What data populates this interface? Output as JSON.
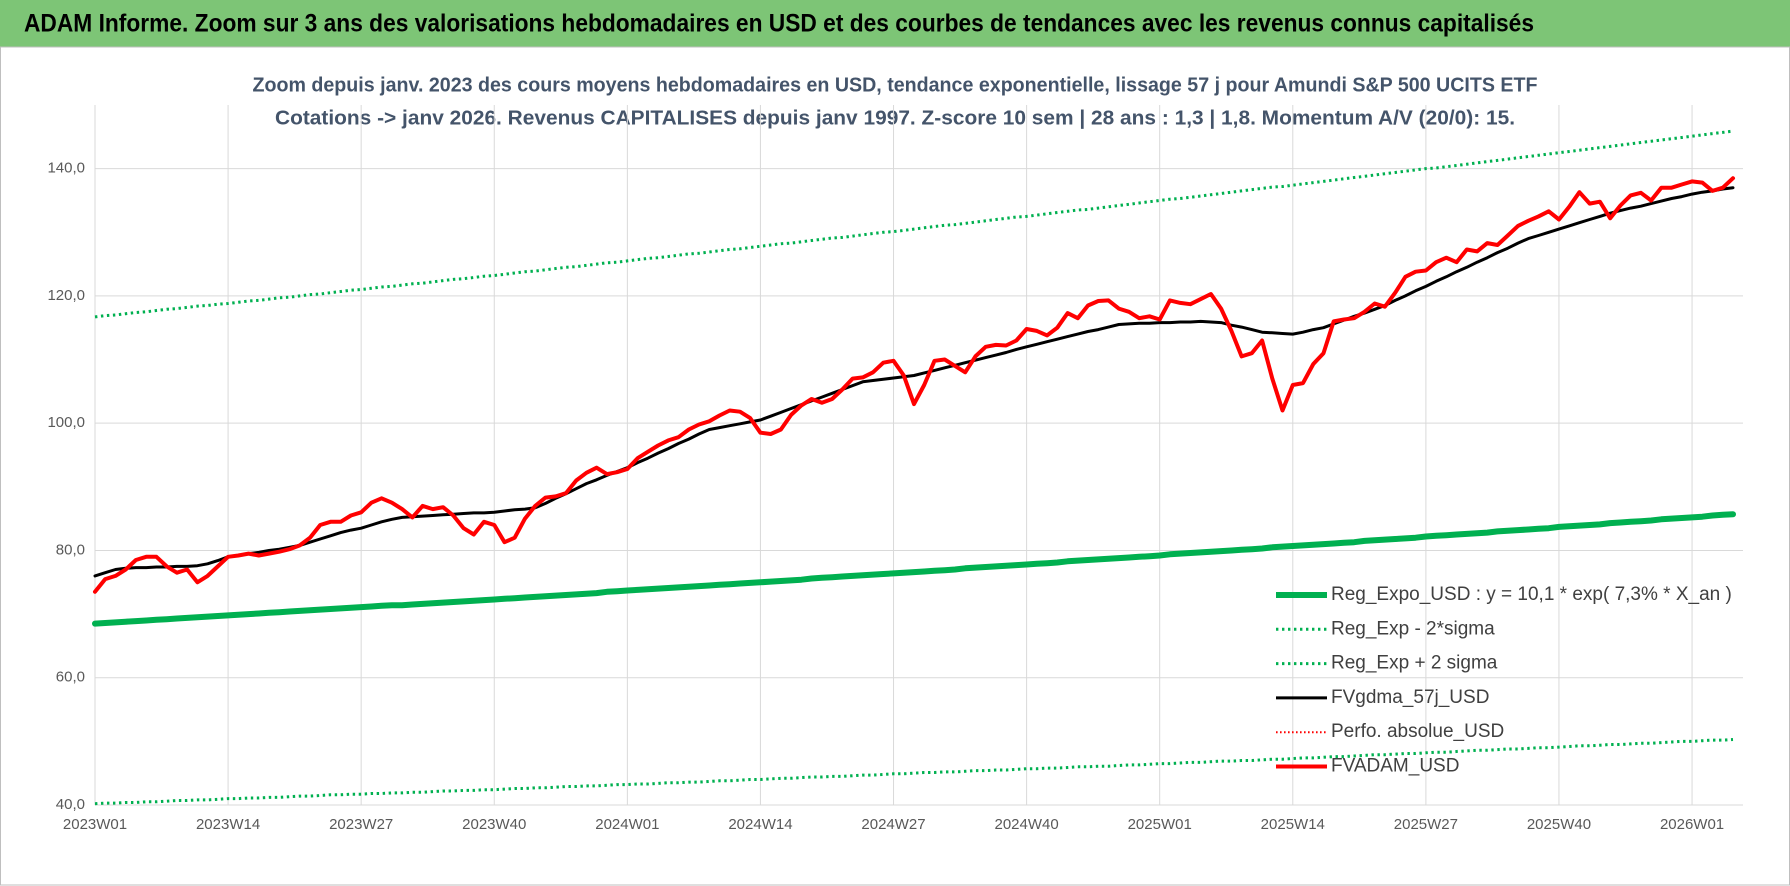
{
  "header": {
    "title": "ADAM Informe. Zoom sur 3 ans des valorisations hebdomadaires en USD et des courbes de tendances avec les revenus connus capitalisés"
  },
  "chart_data": {
    "type": "line",
    "title": "Zoom depuis janv. 2023 des cours moyens hebdomadaires en USD, tendance exponentielle, lissage 57 j pour Amundi S&P 500 UCITS ETF",
    "subtitle": "Cotations -> janv 2026. Revenus CAPITALISES depuis janv 1997. Z-score 10 sem | 28 ans : 1,3 | 1,8. Momentum A/V (20/0): 15.",
    "categories": [
      "2023W01",
      null,
      null,
      null,
      null,
      null,
      null,
      null,
      null,
      null,
      null,
      null,
      null,
      "2023W14",
      null,
      null,
      null,
      null,
      null,
      null,
      null,
      null,
      null,
      null,
      null,
      null,
      "2023W27",
      null,
      null,
      null,
      null,
      null,
      null,
      null,
      null,
      null,
      null,
      null,
      null,
      "2023W40",
      null,
      null,
      null,
      null,
      null,
      null,
      null,
      null,
      null,
      null,
      null,
      null,
      "2024W01",
      null,
      null,
      null,
      null,
      null,
      null,
      null,
      null,
      null,
      null,
      null,
      null,
      "2024W14",
      null,
      null,
      null,
      null,
      null,
      null,
      null,
      null,
      null,
      null,
      null,
      null,
      "2024W27",
      null,
      null,
      null,
      null,
      null,
      null,
      null,
      null,
      null,
      null,
      null,
      null,
      "2024W40",
      null,
      null,
      null,
      null,
      null,
      null,
      null,
      null,
      null,
      null,
      null,
      null,
      "2025W01",
      null,
      null,
      null,
      null,
      null,
      null,
      null,
      null,
      null,
      null,
      null,
      null,
      "2025W14",
      null,
      null,
      null,
      null,
      null,
      null,
      null,
      null,
      null,
      null,
      null,
      null,
      "2025W27",
      null,
      null,
      null,
      null,
      null,
      null,
      null,
      null,
      null,
      null,
      null,
      null,
      "2025W40",
      null,
      null,
      null,
      null,
      null,
      null,
      null,
      null,
      null,
      null,
      null,
      null,
      "2026W01",
      null,
      null,
      null,
      null
    ],
    "ylim": [
      40,
      150
    ],
    "yticks": [
      {
        "value": 40,
        "label": "40,0"
      },
      {
        "value": 60,
        "label": "60,0"
      },
      {
        "value": 80,
        "label": "80,0"
      },
      {
        "value": 100,
        "label": "100,0"
      },
      {
        "value": 120,
        "label": "120,0"
      },
      {
        "value": 140,
        "label": "140,0"
      }
    ],
    "grid": true,
    "legend": "bottom-right",
    "series": [
      {
        "name": "Reg_Expo_USD : y = 10,1 * exp( 7,3% *  X_an )",
        "color": "#00b050",
        "style": "solid",
        "width": 6,
        "values": [
          68.5,
          68.6,
          68.7,
          68.8,
          68.9,
          69.0,
          69.1,
          69.2,
          69.3,
          69.4,
          69.5,
          69.6,
          69.7,
          69.8,
          69.9,
          70.0,
          70.1,
          70.2,
          70.3,
          70.4,
          70.5,
          70.6,
          70.7,
          70.8,
          70.9,
          71.0,
          71.1,
          71.2,
          71.3,
          71.4,
          71.4,
          71.5,
          71.6,
          71.7,
          71.8,
          71.9,
          72.0,
          72.1,
          72.2,
          72.3,
          72.4,
          72.5,
          72.6,
          72.7,
          72.8,
          72.9,
          73.0,
          73.1,
          73.2,
          73.3,
          73.5,
          73.6,
          73.7,
          73.8,
          73.9,
          74.0,
          74.1,
          74.2,
          74.3,
          74.4,
          74.5,
          74.6,
          74.7,
          74.8,
          74.9,
          75.0,
          75.1,
          75.2,
          75.3,
          75.4,
          75.6,
          75.7,
          75.8,
          75.9,
          76.0,
          76.1,
          76.2,
          76.3,
          76.4,
          76.5,
          76.6,
          76.7,
          76.8,
          76.9,
          77.0,
          77.2,
          77.3,
          77.4,
          77.5,
          77.6,
          77.7,
          77.8,
          77.9,
          78.0,
          78.1,
          78.3,
          78.4,
          78.5,
          78.6,
          78.7,
          78.8,
          78.9,
          79.0,
          79.1,
          79.2,
          79.4,
          79.5,
          79.6,
          79.7,
          79.8,
          79.9,
          80.0,
          80.1,
          80.2,
          80.3,
          80.5,
          80.6,
          80.7,
          80.8,
          80.9,
          81.0,
          81.1,
          81.2,
          81.3,
          81.5,
          81.6,
          81.7,
          81.8,
          81.9,
          82.0,
          82.2,
          82.3,
          82.4,
          82.5,
          82.6,
          82.7,
          82.8,
          83.0,
          83.1,
          83.2,
          83.3,
          83.4,
          83.5,
          83.7,
          83.8,
          83.9,
          84.0,
          84.1,
          84.3,
          84.4,
          84.5,
          84.6,
          84.7,
          84.9,
          85.0,
          85.1,
          85.2,
          85.3,
          85.5,
          85.6,
          85.7
        ]
      },
      {
        "name": "Reg_Exp - 2*sigma",
        "color": "#00b050",
        "style": "dotted",
        "width": 3,
        "values": [
          40.2,
          40.3,
          40.3,
          40.4,
          40.4,
          40.5,
          40.5,
          40.6,
          40.7,
          40.7,
          40.8,
          40.8,
          40.9,
          41.0,
          41.0,
          41.1,
          41.1,
          41.2,
          41.2,
          41.3,
          41.4,
          41.4,
          41.5,
          41.6,
          41.6,
          41.7,
          41.7,
          41.8,
          41.8,
          41.9,
          41.9,
          42.0,
          42.0,
          42.1,
          42.2,
          42.2,
          42.3,
          42.3,
          42.4,
          42.4,
          42.5,
          42.6,
          42.6,
          42.7,
          42.7,
          42.8,
          42.9,
          42.9,
          43.0,
          43.0,
          43.1,
          43.2,
          43.2,
          43.3,
          43.3,
          43.4,
          43.5,
          43.5,
          43.6,
          43.6,
          43.7,
          43.8,
          43.8,
          43.9,
          44.0,
          44.0,
          44.1,
          44.2,
          44.2,
          44.3,
          44.4,
          44.4,
          44.5,
          44.5,
          44.6,
          44.7,
          44.7,
          44.8,
          44.9,
          44.9,
          45.0,
          45.1,
          45.1,
          45.2,
          45.2,
          45.3,
          45.4,
          45.4,
          45.5,
          45.5,
          45.6,
          45.7,
          45.7,
          45.8,
          45.8,
          45.9,
          46.0,
          46.0,
          46.1,
          46.1,
          46.2,
          46.3,
          46.3,
          46.4,
          46.5,
          46.5,
          46.6,
          46.7,
          46.7,
          46.8,
          46.9,
          46.9,
          47.0,
          47.0,
          47.1,
          47.2,
          47.2,
          47.3,
          47.4,
          47.4,
          47.5,
          47.6,
          47.6,
          47.7,
          47.8,
          47.9,
          47.9,
          48.0,
          48.1,
          48.1,
          48.2,
          48.3,
          48.3,
          48.4,
          48.5,
          48.6,
          48.6,
          48.7,
          48.8,
          48.8,
          48.9,
          49.0,
          49.0,
          49.1,
          49.2,
          49.3,
          49.3,
          49.4,
          49.5,
          49.5,
          49.6,
          49.7,
          49.7,
          49.8,
          49.9,
          50.0,
          50.0,
          50.1,
          50.2,
          50.2,
          50.3
        ]
      },
      {
        "name": "Reg_Exp + 2 sigma",
        "color": "#00b050",
        "style": "dotted",
        "width": 3,
        "values": [
          116.7,
          116.9,
          117.0,
          117.2,
          117.4,
          117.5,
          117.7,
          117.9,
          118.0,
          118.2,
          118.4,
          118.5,
          118.7,
          118.8,
          119.0,
          119.2,
          119.3,
          119.5,
          119.7,
          119.8,
          120.0,
          120.2,
          120.3,
          120.5,
          120.7,
          120.9,
          121.0,
          121.2,
          121.4,
          121.5,
          121.7,
          121.9,
          122.0,
          122.2,
          122.4,
          122.6,
          122.7,
          122.9,
          123.1,
          123.2,
          123.4,
          123.6,
          123.8,
          123.9,
          124.1,
          124.3,
          124.5,
          124.6,
          124.8,
          125.0,
          125.2,
          125.3,
          125.5,
          125.7,
          125.9,
          126.0,
          126.2,
          126.4,
          126.6,
          126.7,
          126.9,
          127.1,
          127.3,
          127.4,
          127.6,
          127.8,
          128.0,
          128.2,
          128.3,
          128.5,
          128.7,
          128.9,
          129.1,
          129.2,
          129.4,
          129.6,
          129.8,
          130.0,
          130.1,
          130.3,
          130.5,
          130.7,
          130.9,
          131.1,
          131.2,
          131.4,
          131.6,
          131.8,
          132.0,
          132.2,
          132.4,
          132.5,
          132.7,
          132.9,
          133.1,
          133.3,
          133.5,
          133.6,
          133.8,
          134.0,
          134.2,
          134.4,
          134.6,
          134.8,
          135.0,
          135.2,
          135.3,
          135.5,
          135.7,
          135.9,
          136.1,
          136.3,
          136.5,
          136.7,
          136.9,
          137.1,
          137.2,
          137.4,
          137.6,
          137.8,
          138.0,
          138.2,
          138.4,
          138.6,
          138.8,
          139.0,
          139.2,
          139.4,
          139.6,
          139.8,
          140.0,
          140.1,
          140.3,
          140.5,
          140.7,
          140.9,
          141.1,
          141.3,
          141.5,
          141.7,
          141.9,
          142.1,
          142.3,
          142.5,
          142.7,
          142.9,
          143.1,
          143.3,
          143.5,
          143.7,
          143.9,
          144.1,
          144.3,
          144.5,
          144.7,
          144.9,
          145.1,
          145.3,
          145.5,
          145.7,
          145.9
        ]
      },
      {
        "name": "FVgdma_57j_USD",
        "color": "#000000",
        "style": "solid",
        "width": 3,
        "values": [
          76,
          76.5,
          77,
          77.2,
          77.3,
          77.3,
          77.4,
          77.4,
          77.5,
          77.5,
          77.6,
          77.9,
          78.4,
          79,
          79.2,
          79.5,
          79.7,
          80,
          80.2,
          80.5,
          80.8,
          81.3,
          81.8,
          82.3,
          82.8,
          83.2,
          83.5,
          84,
          84.5,
          84.9,
          85.2,
          85.3,
          85.4,
          85.5,
          85.6,
          85.7,
          85.8,
          85.9,
          85.9,
          86,
          86.2,
          86.4,
          86.5,
          86.7,
          87.4,
          88.2,
          88.9,
          89.7,
          90.5,
          91.1,
          91.8,
          92.4,
          93,
          93.8,
          94.5,
          95.3,
          96,
          96.8,
          97.5,
          98.3,
          99,
          99.3,
          99.6,
          99.9,
          100.2,
          100.5,
          101.1,
          101.7,
          102.3,
          102.9,
          103.5,
          104.1,
          104.7,
          105.3,
          105.9,
          106.5,
          106.7,
          106.9,
          107.1,
          107.3,
          107.5,
          107.9,
          108.3,
          108.7,
          109.1,
          109.5,
          109.9,
          110.3,
          110.7,
          111.1,
          111.6,
          112,
          112.4,
          112.8,
          113.2,
          113.6,
          114,
          114.4,
          114.7,
          115.1,
          115.5,
          115.6,
          115.7,
          115.7,
          115.8,
          115.8,
          115.9,
          115.9,
          116,
          115.9,
          115.8,
          115.4,
          115.1,
          114.7,
          114.3,
          114.2,
          114.1,
          114,
          114.3,
          114.7,
          115,
          115.6,
          116.2,
          116.8,
          117.3,
          117.9,
          118.5,
          119.3,
          120,
          120.8,
          121.5,
          122.3,
          123,
          123.8,
          124.5,
          125.3,
          126,
          126.8,
          127.5,
          128.3,
          129,
          129.5,
          130,
          130.5,
          131,
          131.5,
          132,
          132.5,
          133,
          133.4,
          133.8,
          134.1,
          134.5,
          134.9,
          135.3,
          135.6,
          136,
          136.3,
          136.5,
          136.8,
          137
        ]
      },
      {
        "name": "Perfo. absolue_USD",
        "color": "#ff0000",
        "style": "dotted",
        "width": 2
      },
      {
        "name": "FVADAM_USD",
        "color": "#ff0000",
        "style": "solid",
        "width": 4,
        "values": [
          73.5,
          75.5,
          76,
          77,
          78.5,
          79,
          79,
          77.5,
          76.5,
          77,
          75,
          76,
          77.5,
          79,
          79.2,
          79.5,
          79.2,
          79.5,
          79.8,
          80.2,
          80.8,
          82,
          84,
          84.5,
          84.5,
          85.5,
          86,
          87.5,
          88.2,
          87.5,
          86.5,
          85.2,
          87,
          86.5,
          86.8,
          85.5,
          83.5,
          82.5,
          84.5,
          84,
          81.3,
          82,
          85,
          87,
          88.3,
          88.5,
          89,
          91,
          92.2,
          93,
          92,
          92.3,
          92.8,
          94.5,
          95.5,
          96.5,
          97.3,
          97.8,
          99,
          99.8,
          100.3,
          101.2,
          102,
          101.8,
          100.8,
          98.5,
          98.3,
          99,
          101.3,
          102.8,
          103.8,
          103.2,
          103.8,
          105.3,
          107,
          107.2,
          108,
          109.5,
          109.8,
          107.5,
          103,
          106,
          109.8,
          110,
          109,
          108,
          110.5,
          112,
          112.3,
          112.2,
          113,
          114.8,
          114.5,
          113.8,
          115,
          117.3,
          116.5,
          118.5,
          119.2,
          119.3,
          118,
          117.5,
          116.5,
          116.8,
          116.3,
          119.3,
          118.9,
          118.7,
          119.5,
          120.3,
          118,
          114.5,
          110.5,
          111,
          113,
          107,
          102,
          106,
          106.3,
          109.3,
          111,
          116,
          116.3,
          116.5,
          117.5,
          118.8,
          118.3,
          120.5,
          123,
          123.8,
          124,
          125.3,
          126,
          125.3,
          127.3,
          127,
          128.3,
          128,
          129.5,
          131,
          131.8,
          132.5,
          133.3,
          132,
          134,
          136.3,
          134.5,
          134.8,
          132.2,
          134.2,
          135.8,
          136.2,
          135,
          137,
          137,
          137.5,
          138,
          137.8,
          136.5,
          137,
          138.5
        ]
      }
    ]
  }
}
